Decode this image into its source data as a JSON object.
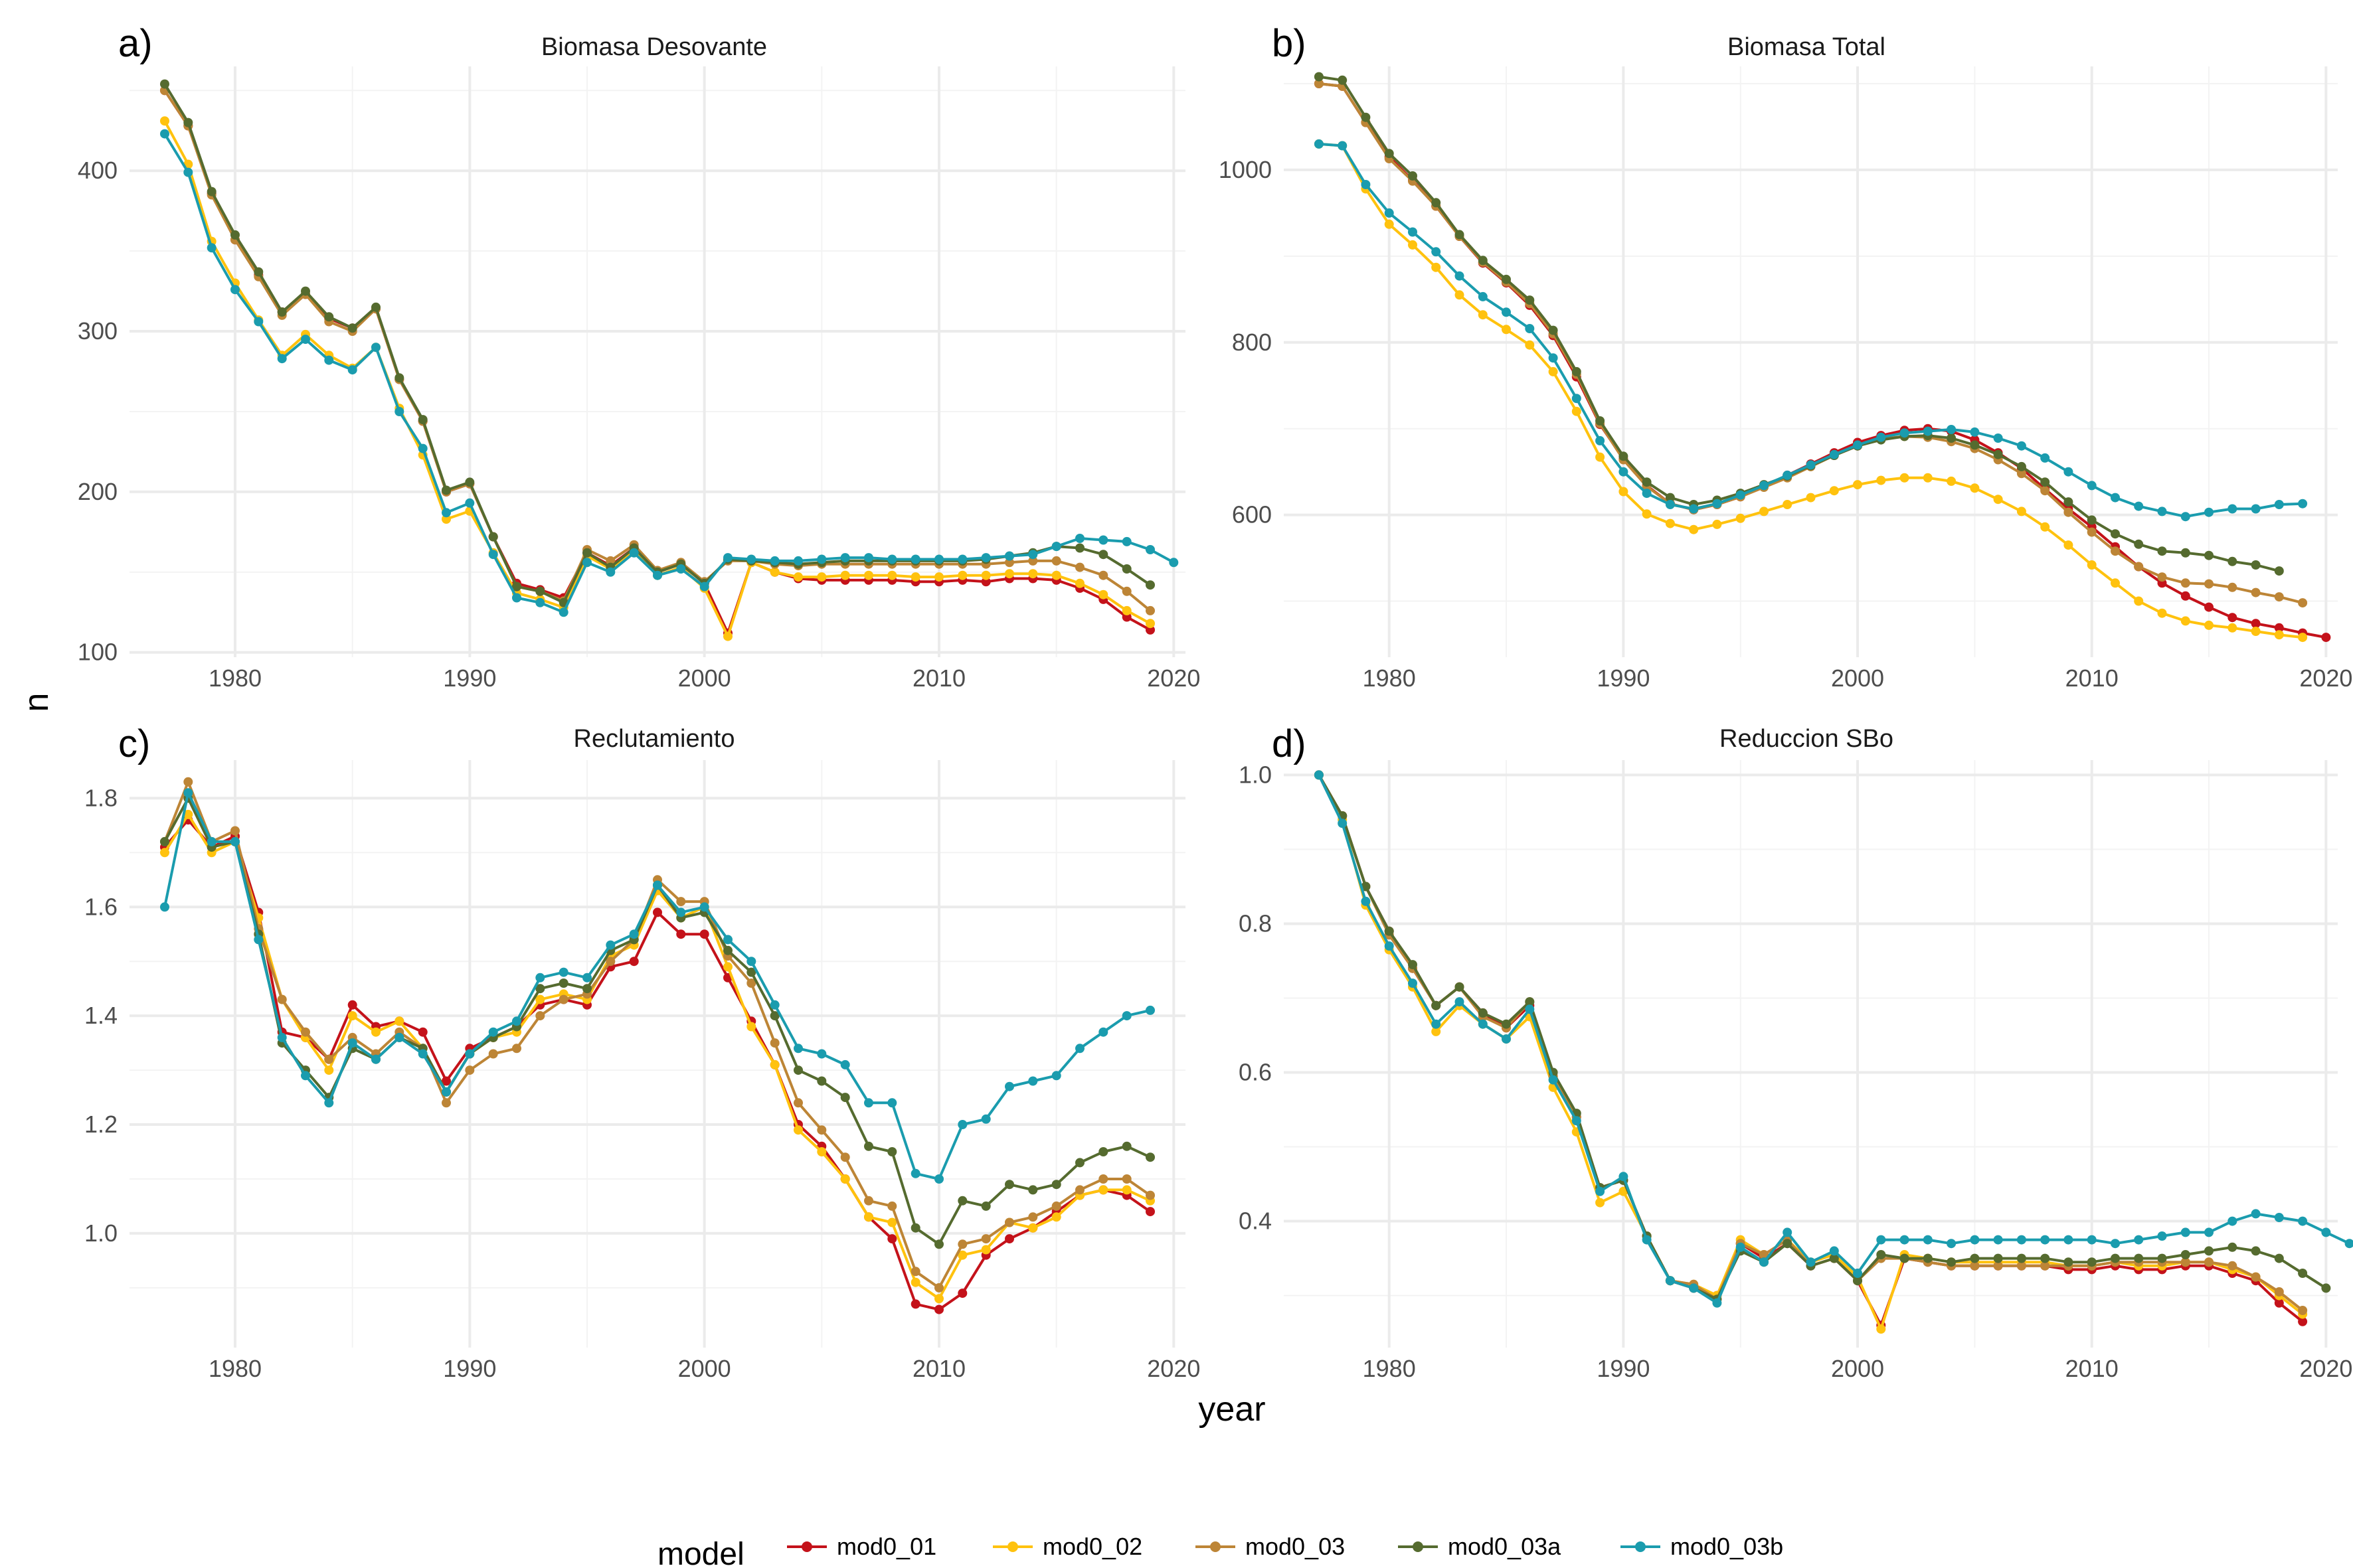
{
  "colors": {
    "mod0_01": "#C4121A",
    "mod0_02": "#FFC20E",
    "mod0_03": "#BD8536",
    "mod0_03a": "#556B2F",
    "mod0_03b": "#1A9CAE"
  },
  "axes": {
    "xlabel": "year",
    "ylabel": "n"
  },
  "legend": {
    "title": "model",
    "position": "bottom",
    "entries": [
      "mod0_01",
      "mod0_02",
      "mod0_03",
      "mod0_03a",
      "mod0_03b"
    ]
  },
  "chart_data": [
    {
      "type": "line",
      "tag": "a)",
      "title": "Biomasa Desovante",
      "xlim": [
        1975.5,
        2020.5
      ],
      "ylim": [
        97,
        465
      ],
      "xticks": [
        1980,
        1990,
        2000,
        2010,
        2020
      ],
      "yticks": [
        100,
        200,
        300,
        400
      ],
      "x_start": 1977,
      "grid": true,
      "series": [
        {
          "name": "mod0_01",
          "values": [
            450,
            428,
            386,
            357,
            335,
            312,
            323,
            308,
            302,
            314,
            270,
            244,
            200,
            205,
            172,
            143,
            139,
            134,
            162,
            154,
            165,
            150,
            155,
            143,
            112,
            156,
            150,
            146,
            145,
            145,
            145,
            145,
            144,
            144,
            145,
            144,
            146,
            146,
            145,
            140,
            133,
            122,
            114
          ]
        },
        {
          "name": "mod0_02",
          "values": [
            431,
            404,
            356,
            330,
            307,
            285,
            298,
            285,
            277,
            290,
            252,
            223,
            183,
            188,
            162,
            137,
            133,
            128,
            160,
            152,
            163,
            148,
            153,
            140,
            110,
            156,
            150,
            147,
            147,
            148,
            148,
            148,
            147,
            147,
            148,
            148,
            149,
            149,
            148,
            143,
            136,
            126,
            118
          ]
        },
        {
          "name": "mod0_03",
          "values": [
            450,
            428,
            385,
            357,
            334,
            310,
            323,
            306,
            300,
            314,
            270,
            244,
            200,
            205,
            172,
            141,
            138,
            132,
            164,
            157,
            167,
            151,
            156,
            144,
            157,
            157,
            155,
            154,
            155,
            155,
            155,
            155,
            155,
            155,
            155,
            155,
            156,
            157,
            157,
            153,
            148,
            138,
            126
          ]
        },
        {
          "name": "mod0_03a",
          "values": [
            454,
            430,
            387,
            360,
            337,
            312,
            325,
            309,
            302,
            315,
            271,
            245,
            201,
            206,
            172,
            141,
            138,
            131,
            162,
            153,
            165,
            150,
            155,
            143,
            158,
            157,
            156,
            155,
            156,
            157,
            157,
            157,
            157,
            157,
            157,
            158,
            160,
            162,
            166,
            165,
            161,
            152,
            142
          ]
        },
        {
          "name": "mod0_03b",
          "values": [
            423,
            399,
            352,
            326,
            306,
            283,
            295,
            282,
            276,
            290,
            250,
            227,
            187,
            193,
            161,
            134,
            131,
            125,
            156,
            150,
            162,
            148,
            152,
            141,
            159,
            158,
            157,
            157,
            158,
            159,
            159,
            158,
            158,
            158,
            158,
            159,
            160,
            161,
            166,
            171,
            170,
            169,
            164,
            156
          ]
        }
      ]
    },
    {
      "type": "line",
      "tag": "b)",
      "title": "Biomasa Total",
      "xlim": [
        1975.5,
        2020.5
      ],
      "ylim": [
        435,
        1120
      ],
      "xticks": [
        1980,
        1990,
        2000,
        2010,
        2020
      ],
      "yticks": [
        600,
        800,
        1000
      ],
      "x_start": 1977,
      "grid": true,
      "series": [
        {
          "name": "mod0_01",
          "values": [
            1100,
            1097,
            1055,
            1015,
            988,
            958,
            923,
            892,
            869,
            843,
            808,
            760,
            705,
            665,
            634,
            613,
            606,
            612,
            621,
            633,
            646,
            659,
            672,
            684,
            692,
            698,
            700,
            697,
            687,
            672,
            654,
            630,
            607,
            586,
            563,
            540,
            521,
            506,
            493,
            481,
            474,
            469,
            463,
            458
          ]
        },
        {
          "name": "mod0_02",
          "values": [
            1030,
            1028,
            978,
            937,
            913,
            887,
            855,
            832,
            815,
            797,
            766,
            720,
            667,
            627,
            601,
            590,
            583,
            589,
            596,
            604,
            612,
            620,
            628,
            635,
            640,
            643,
            643,
            639,
            631,
            618,
            604,
            586,
            565,
            542,
            521,
            500,
            486,
            477,
            472,
            469,
            465,
            461,
            458
          ]
        },
        {
          "name": "mod0_03",
          "values": [
            1100,
            1097,
            1055,
            1013,
            987,
            958,
            923,
            893,
            870,
            845,
            810,
            763,
            706,
            664,
            633,
            613,
            606,
            612,
            621,
            632,
            643,
            656,
            669,
            680,
            688,
            691,
            690,
            685,
            677,
            664,
            648,
            628,
            603,
            580,
            558,
            540,
            528,
            521,
            520,
            516,
            510,
            505,
            498
          ]
        },
        {
          "name": "mod0_03a",
          "values": [
            1108,
            1104,
            1061,
            1019,
            993,
            962,
            925,
            895,
            873,
            849,
            814,
            766,
            709,
            668,
            638,
            620,
            612,
            617,
            625,
            635,
            645,
            657,
            669,
            680,
            687,
            691,
            692,
            689,
            681,
            670,
            656,
            638,
            615,
            594,
            578,
            566,
            558,
            556,
            553,
            546,
            542,
            535
          ]
        },
        {
          "name": "mod0_03b",
          "values": [
            1030,
            1028,
            983,
            950,
            928,
            905,
            877,
            853,
            835,
            816,
            782,
            735,
            686,
            650,
            625,
            612,
            607,
            613,
            623,
            634,
            646,
            658,
            670,
            681,
            690,
            695,
            697,
            699,
            696,
            689,
            680,
            666,
            650,
            634,
            620,
            610,
            604,
            598,
            603,
            607,
            607,
            612,
            613
          ]
        }
      ]
    },
    {
      "type": "line",
      "tag": "c)",
      "title": "Reclutamiento",
      "xlim": [
        1975.5,
        2020.5
      ],
      "ylim": [
        0.79,
        1.87
      ],
      "xticks": [
        1980,
        1990,
        2000,
        2010,
        2020
      ],
      "yticks": [
        1.0,
        1.2,
        1.4,
        1.6,
        1.8
      ],
      "x_start": 1977,
      "grid": true,
      "series": [
        {
          "name": "mod0_01",
          "values": [
            1.71,
            1.76,
            1.71,
            1.73,
            1.59,
            1.37,
            1.36,
            1.32,
            1.42,
            1.38,
            1.39,
            1.37,
            1.28,
            1.34,
            1.36,
            1.38,
            1.42,
            1.43,
            1.42,
            1.49,
            1.5,
            1.59,
            1.55,
            1.55,
            1.47,
            1.39,
            1.31,
            1.2,
            1.16,
            1.1,
            1.03,
            0.99,
            0.87,
            0.86,
            0.89,
            0.96,
            0.99,
            1.01,
            1.04,
            1.07,
            1.08,
            1.07,
            1.04
          ]
        },
        {
          "name": "mod0_02",
          "values": [
            1.7,
            1.77,
            1.7,
            1.72,
            1.58,
            1.43,
            1.36,
            1.3,
            1.4,
            1.37,
            1.39,
            1.34,
            1.26,
            1.33,
            1.36,
            1.37,
            1.43,
            1.44,
            1.43,
            1.51,
            1.53,
            1.63,
            1.58,
            1.6,
            1.49,
            1.38,
            1.31,
            1.19,
            1.15,
            1.1,
            1.03,
            1.02,
            0.91,
            0.88,
            0.96,
            0.97,
            1.02,
            1.01,
            1.03,
            1.07,
            1.08,
            1.08,
            1.06
          ]
        },
        {
          "name": "mod0_03",
          "values": [
            1.72,
            1.83,
            1.72,
            1.74,
            1.56,
            1.43,
            1.37,
            1.32,
            1.36,
            1.33,
            1.37,
            1.34,
            1.24,
            1.3,
            1.33,
            1.34,
            1.4,
            1.43,
            1.44,
            1.5,
            1.54,
            1.65,
            1.61,
            1.61,
            1.51,
            1.46,
            1.35,
            1.24,
            1.19,
            1.14,
            1.06,
            1.05,
            0.93,
            0.9,
            0.98,
            0.99,
            1.02,
            1.03,
            1.05,
            1.08,
            1.1,
            1.1,
            1.07
          ]
        },
        {
          "name": "mod0_03a",
          "values": [
            1.72,
            1.8,
            1.71,
            1.72,
            1.55,
            1.35,
            1.3,
            1.25,
            1.34,
            1.32,
            1.36,
            1.34,
            1.26,
            1.33,
            1.36,
            1.38,
            1.45,
            1.46,
            1.45,
            1.52,
            1.54,
            1.64,
            1.58,
            1.59,
            1.52,
            1.48,
            1.4,
            1.3,
            1.28,
            1.25,
            1.16,
            1.15,
            1.01,
            0.98,
            1.06,
            1.05,
            1.09,
            1.08,
            1.09,
            1.13,
            1.15,
            1.16,
            1.14
          ]
        },
        {
          "name": "mod0_03b",
          "values": [
            1.6,
            1.81,
            1.72,
            1.72,
            1.54,
            1.36,
            1.29,
            1.24,
            1.35,
            1.32,
            1.36,
            1.33,
            1.26,
            1.33,
            1.37,
            1.39,
            1.47,
            1.48,
            1.47,
            1.53,
            1.55,
            1.64,
            1.59,
            1.6,
            1.54,
            1.5,
            1.42,
            1.34,
            1.33,
            1.31,
            1.24,
            1.24,
            1.11,
            1.1,
            1.2,
            1.21,
            1.27,
            1.28,
            1.29,
            1.34,
            1.37,
            1.4,
            1.41
          ]
        }
      ]
    },
    {
      "type": "line",
      "tag": "d)",
      "title": "Reduccion SBo",
      "xlim": [
        1975.5,
        2020.5
      ],
      "ylim": [
        0.23,
        1.02
      ],
      "xticks": [
        1980,
        1990,
        2000,
        2010,
        2020
      ],
      "yticks": [
        0.4,
        0.6,
        0.8,
        1.0
      ],
      "x_start": 1977,
      "grid": true,
      "series": [
        {
          "name": "mod0_01",
          "values": [
            1.0,
            0.945,
            0.85,
            0.79,
            0.74,
            0.69,
            0.715,
            0.68,
            0.66,
            0.69,
            0.595,
            0.54,
            0.445,
            0.455,
            0.38,
            0.32,
            0.31,
            0.3,
            0.37,
            0.35,
            0.37,
            0.34,
            0.35,
            0.32,
            0.26,
            0.35,
            0.345,
            0.34,
            0.34,
            0.34,
            0.34,
            0.34,
            0.335,
            0.335,
            0.34,
            0.335,
            0.335,
            0.34,
            0.34,
            0.33,
            0.32,
            0.29,
            0.265
          ]
        },
        {
          "name": "mod0_02",
          "values": [
            1.0,
            0.94,
            0.825,
            0.765,
            0.715,
            0.655,
            0.69,
            0.665,
            0.645,
            0.675,
            0.58,
            0.52,
            0.425,
            0.44,
            0.38,
            0.32,
            0.315,
            0.3,
            0.375,
            0.355,
            0.375,
            0.345,
            0.355,
            0.325,
            0.255,
            0.355,
            0.35,
            0.345,
            0.345,
            0.345,
            0.345,
            0.345,
            0.34,
            0.34,
            0.345,
            0.34,
            0.34,
            0.345,
            0.345,
            0.335,
            0.325,
            0.3,
            0.275
          ]
        },
        {
          "name": "mod0_03",
          "values": [
            1.0,
            0.945,
            0.85,
            0.785,
            0.74,
            0.69,
            0.715,
            0.675,
            0.66,
            0.695,
            0.595,
            0.54,
            0.445,
            0.455,
            0.38,
            0.32,
            0.315,
            0.295,
            0.37,
            0.355,
            0.375,
            0.34,
            0.35,
            0.32,
            0.35,
            0.35,
            0.345,
            0.34,
            0.34,
            0.34,
            0.34,
            0.34,
            0.34,
            0.34,
            0.345,
            0.345,
            0.345,
            0.345,
            0.345,
            0.34,
            0.325,
            0.305,
            0.28
          ]
        },
        {
          "name": "mod0_03a",
          "values": [
            1.0,
            0.945,
            0.85,
            0.79,
            0.745,
            0.69,
            0.715,
            0.68,
            0.665,
            0.695,
            0.6,
            0.545,
            0.445,
            0.455,
            0.38,
            0.32,
            0.31,
            0.295,
            0.36,
            0.345,
            0.37,
            0.34,
            0.35,
            0.32,
            0.355,
            0.35,
            0.35,
            0.345,
            0.35,
            0.35,
            0.35,
            0.35,
            0.345,
            0.345,
            0.35,
            0.35,
            0.35,
            0.355,
            0.36,
            0.365,
            0.36,
            0.35,
            0.33,
            0.31
          ]
        },
        {
          "name": "mod0_03b",
          "values": [
            1.0,
            0.935,
            0.83,
            0.77,
            0.72,
            0.665,
            0.695,
            0.665,
            0.645,
            0.685,
            0.59,
            0.535,
            0.44,
            0.46,
            0.375,
            0.32,
            0.31,
            0.29,
            0.365,
            0.345,
            0.385,
            0.345,
            0.36,
            0.33,
            0.375,
            0.375,
            0.375,
            0.37,
            0.375,
            0.375,
            0.375,
            0.375,
            0.375,
            0.375,
            0.37,
            0.375,
            0.38,
            0.385,
            0.385,
            0.4,
            0.41,
            0.405,
            0.4,
            0.385,
            0.37
          ]
        }
      ]
    }
  ]
}
